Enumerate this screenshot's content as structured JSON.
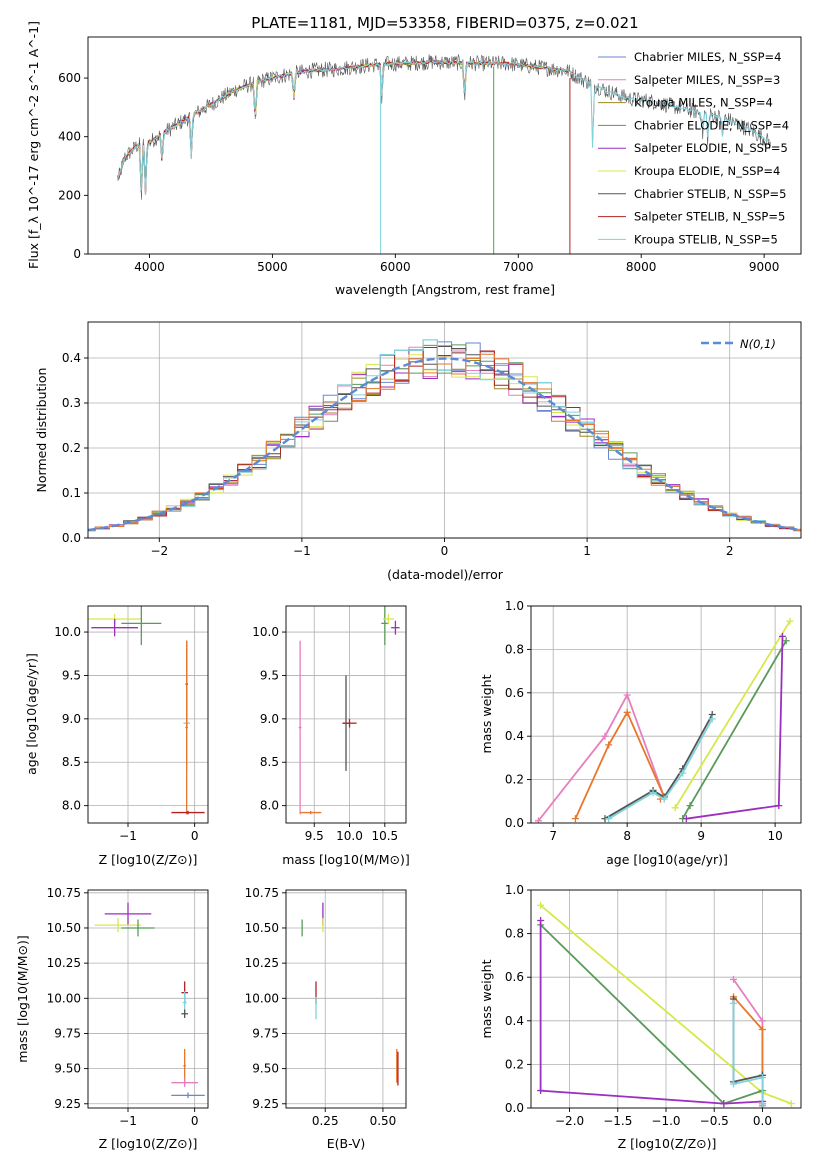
{
  "chart_data": [
    {
      "type": "line",
      "title": "PLATE=1181, MJD=53358, FIBERID=0375, z=0.021",
      "xlabel": "wavelength [Angstrom, rest frame]",
      "ylabel": "Flux [f_λ 10^-17 erg cm^-2 s^-1 A^-1]",
      "xlim": [
        3500,
        9300
      ],
      "ylim": [
        0,
        740
      ],
      "xticks": [
        4000,
        5000,
        6000,
        7000,
        8000,
        9000
      ],
      "yticks": [
        0,
        200,
        400,
        600
      ],
      "legend_position": "top-right",
      "series": [
        {
          "name": "Chabrier MILES, N_SSP=4",
          "color": "#6a86d6"
        },
        {
          "name": "Salpeter MILES, N_SSP=3",
          "color": "#e57fbf"
        },
        {
          "name": "Kroupa MILES, N_SSP=4",
          "color": "#9b8a1f"
        },
        {
          "name": "Chabrier ELODIE, N_SSP=4",
          "color": "#5a9a5a"
        },
        {
          "name": "Salpeter ELODIE, N_SSP=5",
          "color": "#9b2fbf"
        },
        {
          "name": "Kroupa ELODIE, N_SSP=4",
          "color": "#d7e84a"
        },
        {
          "name": "Chabrier STELIB, N_SSP=5",
          "color": "#555555"
        },
        {
          "name": "Salpeter STELIB, N_SSP=5",
          "color": "#b22222"
        },
        {
          "name": "Kroupa STELIB, N_SSP=5",
          "color": "#7fd3dc"
        }
      ],
      "spectrum_profile": {
        "x": [
          3750,
          3800,
          3900,
          4000,
          4100,
          4300,
          4500,
          4700,
          4900,
          5100,
          5300,
          5500,
          5700,
          5900,
          6100,
          6300,
          6500,
          6700,
          6900,
          7100,
          7300,
          7400,
          7500,
          7700,
          7900,
          8100,
          8300,
          8500,
          8700,
          8900,
          9050
        ],
        "y": [
          260,
          330,
          370,
          380,
          410,
          460,
          510,
          560,
          590,
          610,
          625,
          630,
          640,
          648,
          650,
          655,
          652,
          650,
          650,
          640,
          630,
          625,
          600,
          560,
          530,
          520,
          500,
          480,
          460,
          420,
          380
        ]
      }
    },
    {
      "type": "line",
      "xlabel": "(data-model)/error",
      "ylabel": "Normed distribution",
      "xlim": [
        -2.5,
        2.5
      ],
      "ylim": [
        0,
        0.48
      ],
      "xticks": [
        -2,
        -1,
        0,
        1,
        2
      ],
      "yticks": [
        0.0,
        0.1,
        0.2,
        0.3,
        0.4
      ],
      "legend": "N(0,1)",
      "reference_curve": {
        "name": "N(0,1)",
        "mean": 0,
        "sigma": 1,
        "color": "#5b8bd6"
      }
    },
    {
      "type": "scatter",
      "xlabel": "Z [log10(Z/Z⊙)]",
      "ylabel": "age  [log10(age/yr)]",
      "xlim": [
        -1.6,
        0.2
      ],
      "ylim": [
        7.8,
        10.3
      ],
      "xticks": [
        -1,
        0
      ],
      "yticks": [
        8.0,
        8.5,
        9.0,
        9.5,
        10.0
      ],
      "points": [
        {
          "x": -1.2,
          "y": 10.15,
          "xerr": 0.4,
          "yerr": 0.06,
          "color": "#d7e84a"
        },
        {
          "x": -1.2,
          "y": 10.05,
          "xerr": 0.35,
          "yerr": 0.1,
          "color": "#9b2fbf"
        },
        {
          "x": -0.8,
          "y": 10.1,
          "xerr": 0.3,
          "yerr": 0.25,
          "color": "#5a9a5a"
        },
        {
          "x": -0.12,
          "y": 8.95,
          "xerr": 0.05,
          "yerr": 0.55,
          "color": "#7fd3dc"
        },
        {
          "x": -0.12,
          "y": 9.4,
          "xerr": 0.02,
          "yerr": 0.5,
          "color": "#555555"
        },
        {
          "x": -0.12,
          "y": 8.9,
          "xerr": 0.02,
          "yerr": 1.0,
          "color": "#e8762c"
        },
        {
          "x": -0.1,
          "y": 7.92,
          "xerr": 0.25,
          "yerr": 0.02,
          "color": "#b22222"
        }
      ]
    },
    {
      "type": "scatter",
      "xlabel": "mass [log10(M/M⊙)]",
      "ylabel": "",
      "xlim": [
        9.1,
        10.8
      ],
      "ylim": [
        7.8,
        10.3
      ],
      "xticks": [
        9.5,
        10.0,
        10.5
      ],
      "yticks": [
        8.0,
        8.5,
        9.0,
        9.5,
        10.0
      ],
      "points": [
        {
          "x": 9.3,
          "y": 8.9,
          "xerr": 0.02,
          "yerr": 1.0,
          "color": "#e57fbf"
        },
        {
          "x": 9.45,
          "y": 7.92,
          "xerr": 0.15,
          "yerr": 0.02,
          "color": "#e8762c"
        },
        {
          "x": 9.95,
          "y": 8.95,
          "xerr": 0.05,
          "yerr": 0.55,
          "color": "#555555"
        },
        {
          "x": 10.0,
          "y": 8.95,
          "xerr": 0.1,
          "yerr": 0.05,
          "color": "#b22222"
        },
        {
          "x": 10.5,
          "y": 10.1,
          "xerr": 0.05,
          "yerr": 0.25,
          "color": "#5a9a5a"
        },
        {
          "x": 10.55,
          "y": 10.15,
          "xerr": 0.08,
          "yerr": 0.06,
          "color": "#d7e84a"
        },
        {
          "x": 10.65,
          "y": 10.05,
          "xerr": 0.06,
          "yerr": 0.08,
          "color": "#9b2fbf"
        }
      ]
    },
    {
      "type": "line",
      "xlabel": "age  [log10(age/yr)]",
      "ylabel": "mass weight",
      "xlim": [
        6.7,
        10.35
      ],
      "ylim": [
        0,
        1.0
      ],
      "xticks": [
        7,
        8,
        9,
        10
      ],
      "yticks": [
        0.0,
        0.2,
        0.4,
        0.6,
        0.8,
        1.0
      ],
      "series": [
        {
          "name": "Salpeter MILES",
          "color": "#e57fbf",
          "x": [
            6.8,
            7.7,
            8.0,
            8.5
          ],
          "y": [
            0.01,
            0.4,
            0.59,
            0.12
          ]
        },
        {
          "name": "Kroupa MILES",
          "color": "#e8762c",
          "x": [
            7.3,
            7.75,
            8.0,
            8.5,
            8.45
          ],
          "y": [
            0.02,
            0.36,
            0.51,
            0.12,
            0.11
          ]
        },
        {
          "name": "Chabrier STELIB",
          "color": "#555555",
          "x": [
            7.7,
            8.35,
            8.5,
            8.75,
            9.15
          ],
          "y": [
            0.02,
            0.15,
            0.12,
            0.25,
            0.5
          ]
        },
        {
          "name": "Kroupa STELIB",
          "color": "#7fd3dc",
          "x": [
            7.75,
            8.35,
            8.5,
            8.75,
            9.15
          ],
          "y": [
            0.02,
            0.14,
            0.11,
            0.23,
            0.48
          ]
        },
        {
          "name": "Kroupa ELODIE",
          "color": "#d7e84a",
          "x": [
            8.65,
            10.2
          ],
          "y": [
            0.07,
            0.93
          ]
        },
        {
          "name": "Chabrier ELODIE",
          "color": "#5a9a5a",
          "x": [
            8.75,
            8.85,
            10.15
          ],
          "y": [
            0.02,
            0.08,
            0.84
          ]
        },
        {
          "name": "Salpeter ELODIE",
          "color": "#9b2fbf",
          "x": [
            8.8,
            10.05,
            10.1
          ],
          "y": [
            0.02,
            0.08,
            0.86
          ]
        }
      ]
    },
    {
      "type": "scatter",
      "xlabel": "Z [log10(Z/Z⊙)]",
      "ylabel": "mass [log10(M/M⊙)]",
      "xlim": [
        -1.6,
        0.2
      ],
      "ylim": [
        9.22,
        10.77
      ],
      "xticks": [
        -1,
        0
      ],
      "yticks": [
        9.25,
        9.5,
        9.75,
        10.0,
        10.25,
        10.5,
        10.75
      ],
      "points": [
        {
          "x": -1.0,
          "y": 10.6,
          "xerr": 0.35,
          "yerr": 0.08,
          "color": "#9b2fbf"
        },
        {
          "x": -1.15,
          "y": 10.52,
          "xerr": 0.35,
          "yerr": 0.05,
          "color": "#d7e84a"
        },
        {
          "x": -0.85,
          "y": 10.5,
          "xerr": 0.25,
          "yerr": 0.06,
          "color": "#5a9a5a"
        },
        {
          "x": -0.15,
          "y": 10.04,
          "xerr": 0.05,
          "yerr": 0.08,
          "color": "#b22222"
        },
        {
          "x": -0.15,
          "y": 9.97,
          "xerr": 0.03,
          "yerr": 0.08,
          "color": "#7fd3dc"
        },
        {
          "x": -0.15,
          "y": 9.89,
          "xerr": 0.05,
          "yerr": 0.03,
          "color": "#555555"
        },
        {
          "x": -0.15,
          "y": 9.52,
          "xerr": 0.02,
          "yerr": 0.12,
          "color": "#e8762c"
        },
        {
          "x": -0.15,
          "y": 9.4,
          "xerr": 0.2,
          "yerr": 0.03,
          "color": "#e57fbf"
        },
        {
          "x": -0.1,
          "y": 9.31,
          "xerr": 0.25,
          "yerr": 0.02,
          "color": "#6a86d6"
        }
      ]
    },
    {
      "type": "scatter",
      "xlabel": "E(B-V)",
      "ylabel": "",
      "xlim": [
        0.08,
        0.6
      ],
      "ylim": [
        9.22,
        10.77
      ],
      "xticks": [
        0.25,
        0.5
      ],
      "yticks": [
        9.25,
        9.5,
        9.75,
        10.0,
        10.25,
        10.5,
        10.75
      ],
      "points": [
        {
          "x": 0.15,
          "y": 10.5,
          "xerr": 0.0,
          "yerr": 0.06,
          "color": "#5a9a5a"
        },
        {
          "x": 0.24,
          "y": 10.6,
          "xerr": 0.0,
          "yerr": 0.08,
          "color": "#9b2fbf"
        },
        {
          "x": 0.24,
          "y": 10.52,
          "xerr": 0.0,
          "yerr": 0.05,
          "color": "#d7e84a"
        },
        {
          "x": 0.21,
          "y": 10.04,
          "xerr": 0.0,
          "yerr": 0.08,
          "color": "#b22222"
        },
        {
          "x": 0.21,
          "y": 9.93,
          "xerr": 0.0,
          "yerr": 0.08,
          "color": "#7fd3dc"
        },
        {
          "x": 0.56,
          "y": 9.52,
          "xerr": 0.0,
          "yerr": 0.12,
          "color": "#e8762c"
        },
        {
          "x": 0.565,
          "y": 9.5,
          "xerr": 0.0,
          "yerr": 0.12,
          "color": "#b22222"
        }
      ]
    },
    {
      "type": "line",
      "xlabel": "Z [log10(Z/Z⊙)]",
      "ylabel": "mass weight",
      "xlim": [
        -2.4,
        0.4
      ],
      "ylim": [
        0,
        1.0
      ],
      "xticks": [
        -2.0,
        -1.5,
        -1.0,
        -0.5,
        0.0
      ],
      "yticks": [
        0.0,
        0.2,
        0.4,
        0.6,
        0.8,
        1.0
      ],
      "series": [
        {
          "name": "Kroupa ELODIE",
          "color": "#d7e84a",
          "x": [
            -2.3,
            0.0,
            0.3
          ],
          "y": [
            0.93,
            0.07,
            0.02
          ]
        },
        {
          "name": "Chabrier ELODIE",
          "color": "#5a9a5a",
          "x": [
            -2.3,
            -0.4,
            0.0
          ],
          "y": [
            0.84,
            0.02,
            0.08
          ]
        },
        {
          "name": "Salpeter ELODIE",
          "color": "#9b2fbf",
          "x": [
            -2.3,
            -2.3,
            -0.4,
            0.0
          ],
          "y": [
            0.86,
            0.08,
            0.02,
            0.03
          ]
        },
        {
          "name": "Salpeter MILES",
          "color": "#e57fbf",
          "x": [
            -0.3,
            0.0,
            0.0
          ],
          "y": [
            0.59,
            0.4,
            0.01
          ]
        },
        {
          "name": "Kroupa MILES",
          "color": "#e8762c",
          "x": [
            -0.3,
            0.0,
            0.0
          ],
          "y": [
            0.51,
            0.36,
            0.02
          ]
        },
        {
          "name": "Chabrier STELIB",
          "color": "#555555",
          "x": [
            -0.3,
            -0.3,
            0.0,
            0.0
          ],
          "y": [
            0.5,
            0.12,
            0.15,
            0.02
          ]
        },
        {
          "name": "Kroupa STELIB",
          "color": "#7fd3dc",
          "x": [
            -0.3,
            -0.3,
            0.0,
            0.0
          ],
          "y": [
            0.48,
            0.11,
            0.14,
            0.02
          ]
        }
      ]
    }
  ]
}
